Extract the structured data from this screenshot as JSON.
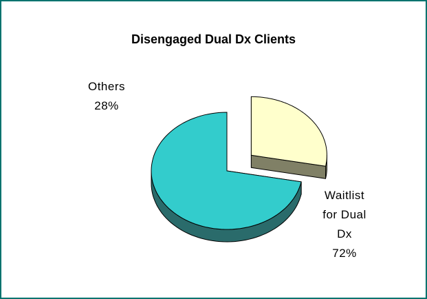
{
  "chart_data": {
    "type": "pie3d",
    "title": "Disengaged Dual Dx Clients",
    "categories": [
      "Others",
      "Waitlist for Dual Dx"
    ],
    "values": [
      28,
      72
    ],
    "value_labels": [
      "28%",
      "72%"
    ],
    "colors": [
      "#ffffcc",
      "#33cccc"
    ],
    "side_colors": [
      "#808066",
      "#2a6b6b"
    ],
    "exploded": [
      true,
      false
    ]
  }
}
